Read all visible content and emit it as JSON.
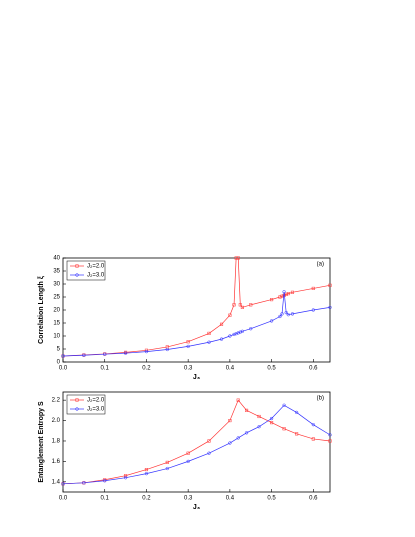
{
  "chart_data": [
    {
      "type": "line",
      "panel_label": "(a)",
      "ylabel": "Correlation Length ξ",
      "xlabel": "J₃",
      "xlim": [
        0,
        0.64
      ],
      "xticks": [
        {
          "value": 0,
          "label": "0.0"
        },
        0.1,
        0.2,
        0.3,
        0.4,
        0.5,
        0.6
      ],
      "ylim": [
        0,
        40
      ],
      "yticks": [
        0,
        5,
        10,
        15,
        20,
        25,
        30,
        35,
        40
      ],
      "x": [
        0,
        0.05,
        0.1,
        0.15,
        0.2,
        0.25,
        0.3,
        0.35,
        0.38,
        0.4,
        0.41,
        0.415,
        0.42,
        0.425,
        0.43,
        0.45,
        0.5,
        0.52,
        0.525,
        0.53,
        0.535,
        0.54,
        0.55,
        0.6,
        0.64
      ],
      "series": [
        {
          "name": "J₂=2.0",
          "color": "#ff3333",
          "marker": "square",
          "values": [
            2.3,
            2.7,
            3.1,
            3.7,
            4.5,
            5.8,
            7.8,
            11,
            14.5,
            18,
            22,
            40,
            40,
            22,
            21,
            22,
            24,
            25,
            25.3,
            25.6,
            26,
            26.3,
            26.8,
            28.3,
            29.5
          ]
        },
        {
          "name": "J₂=3.0",
          "color": "#3333ff",
          "marker": "circle",
          "values": [
            2.3,
            2.6,
            3,
            3.4,
            4,
            4.8,
            6,
            7.6,
            8.8,
            10,
            10.6,
            10.9,
            11.2,
            11.5,
            11.8,
            12.8,
            15.8,
            17.5,
            18.5,
            27,
            19,
            18.2,
            18.5,
            20,
            21
          ]
        }
      ]
    },
    {
      "type": "line",
      "panel_label": "(b)",
      "ylabel": "Entanglement Entropy S",
      "xlabel": "J₃",
      "xlim": [
        0,
        0.64
      ],
      "xticks": [
        {
          "value": 0,
          "label": "0.0"
        },
        0.1,
        0.2,
        0.3,
        0.4,
        0.5,
        0.6
      ],
      "ylim": [
        1.3,
        2.28
      ],
      "yticks": [
        1.4,
        1.6,
        1.8,
        2.0,
        2.2
      ],
      "x": [
        0,
        0.05,
        0.1,
        0.15,
        0.2,
        0.25,
        0.3,
        0.35,
        0.4,
        0.42,
        0.44,
        0.47,
        0.5,
        0.53,
        0.56,
        0.6,
        0.64
      ],
      "series": [
        {
          "name": "J₂=2.0",
          "color": "#ff3333",
          "marker": "square",
          "values": [
            1.38,
            1.39,
            1.42,
            1.46,
            1.52,
            1.59,
            1.68,
            1.8,
            2.0,
            2.2,
            2.1,
            2.04,
            1.98,
            1.92,
            1.87,
            1.82,
            1.8
          ]
        },
        {
          "name": "J₂=3.0",
          "color": "#3333ff",
          "marker": "circle",
          "values": [
            1.38,
            1.39,
            1.41,
            1.44,
            1.48,
            1.53,
            1.6,
            1.68,
            1.78,
            1.83,
            1.88,
            1.94,
            2.02,
            2.15,
            2.08,
            1.96,
            1.86
          ]
        }
      ]
    }
  ]
}
